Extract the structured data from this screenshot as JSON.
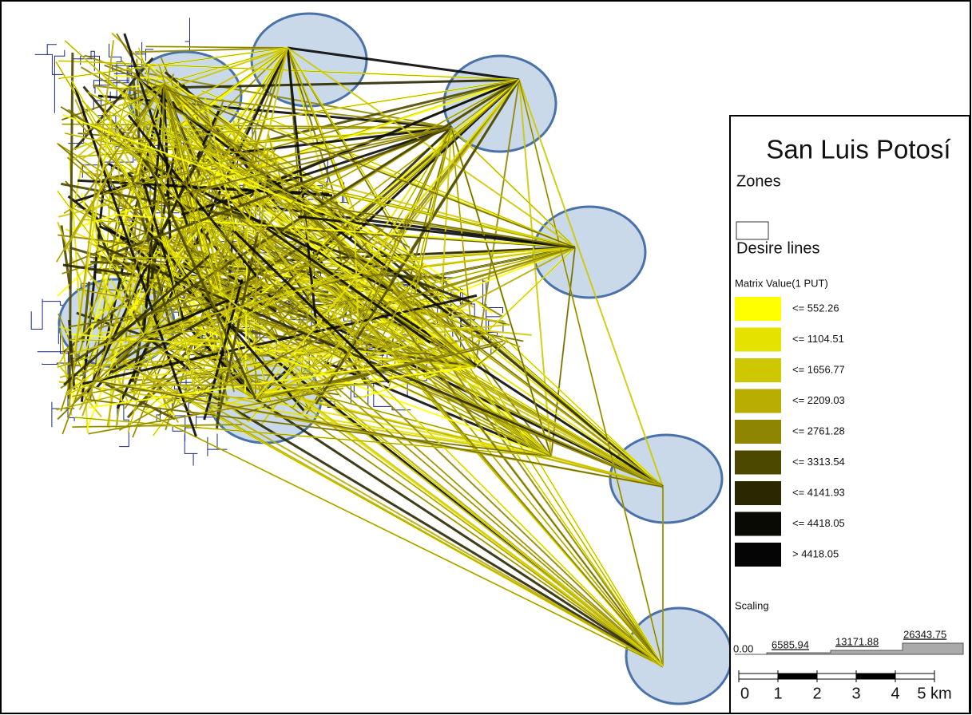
{
  "legend": {
    "title": "San Luis Potosí",
    "zones_label": "Zones",
    "desire_lines_label": "Desire lines",
    "matrix_label": "Matrix Value(1 PUT)",
    "classes": [
      {
        "label": "<= 552.26",
        "color": "#ffff00"
      },
      {
        "label": "<= 1104.51",
        "color": "#e6e200"
      },
      {
        "label": "<= 1656.77",
        "color": "#cfc800"
      },
      {
        "label": "<= 2209.03",
        "color": "#b8ad00"
      },
      {
        "label": "<= 2761.28",
        "color": "#8f8600"
      },
      {
        "label": "<= 3313.54",
        "color": "#4d4800"
      },
      {
        "label": "<= 4141.93",
        "color": "#2a2800"
      },
      {
        "label": "<= 4418.05",
        "color": "#0a0a05"
      },
      {
        "label": "> 4418.05",
        "color": "#050505"
      }
    ],
    "scaling_label": "Scaling",
    "scaling_ticks": [
      "0.00",
      "6585.94",
      "13171.88",
      "26343.75"
    ],
    "scale_bar_ticks": [
      "0",
      "1",
      "2",
      "3",
      "4",
      "5 km"
    ]
  }
}
